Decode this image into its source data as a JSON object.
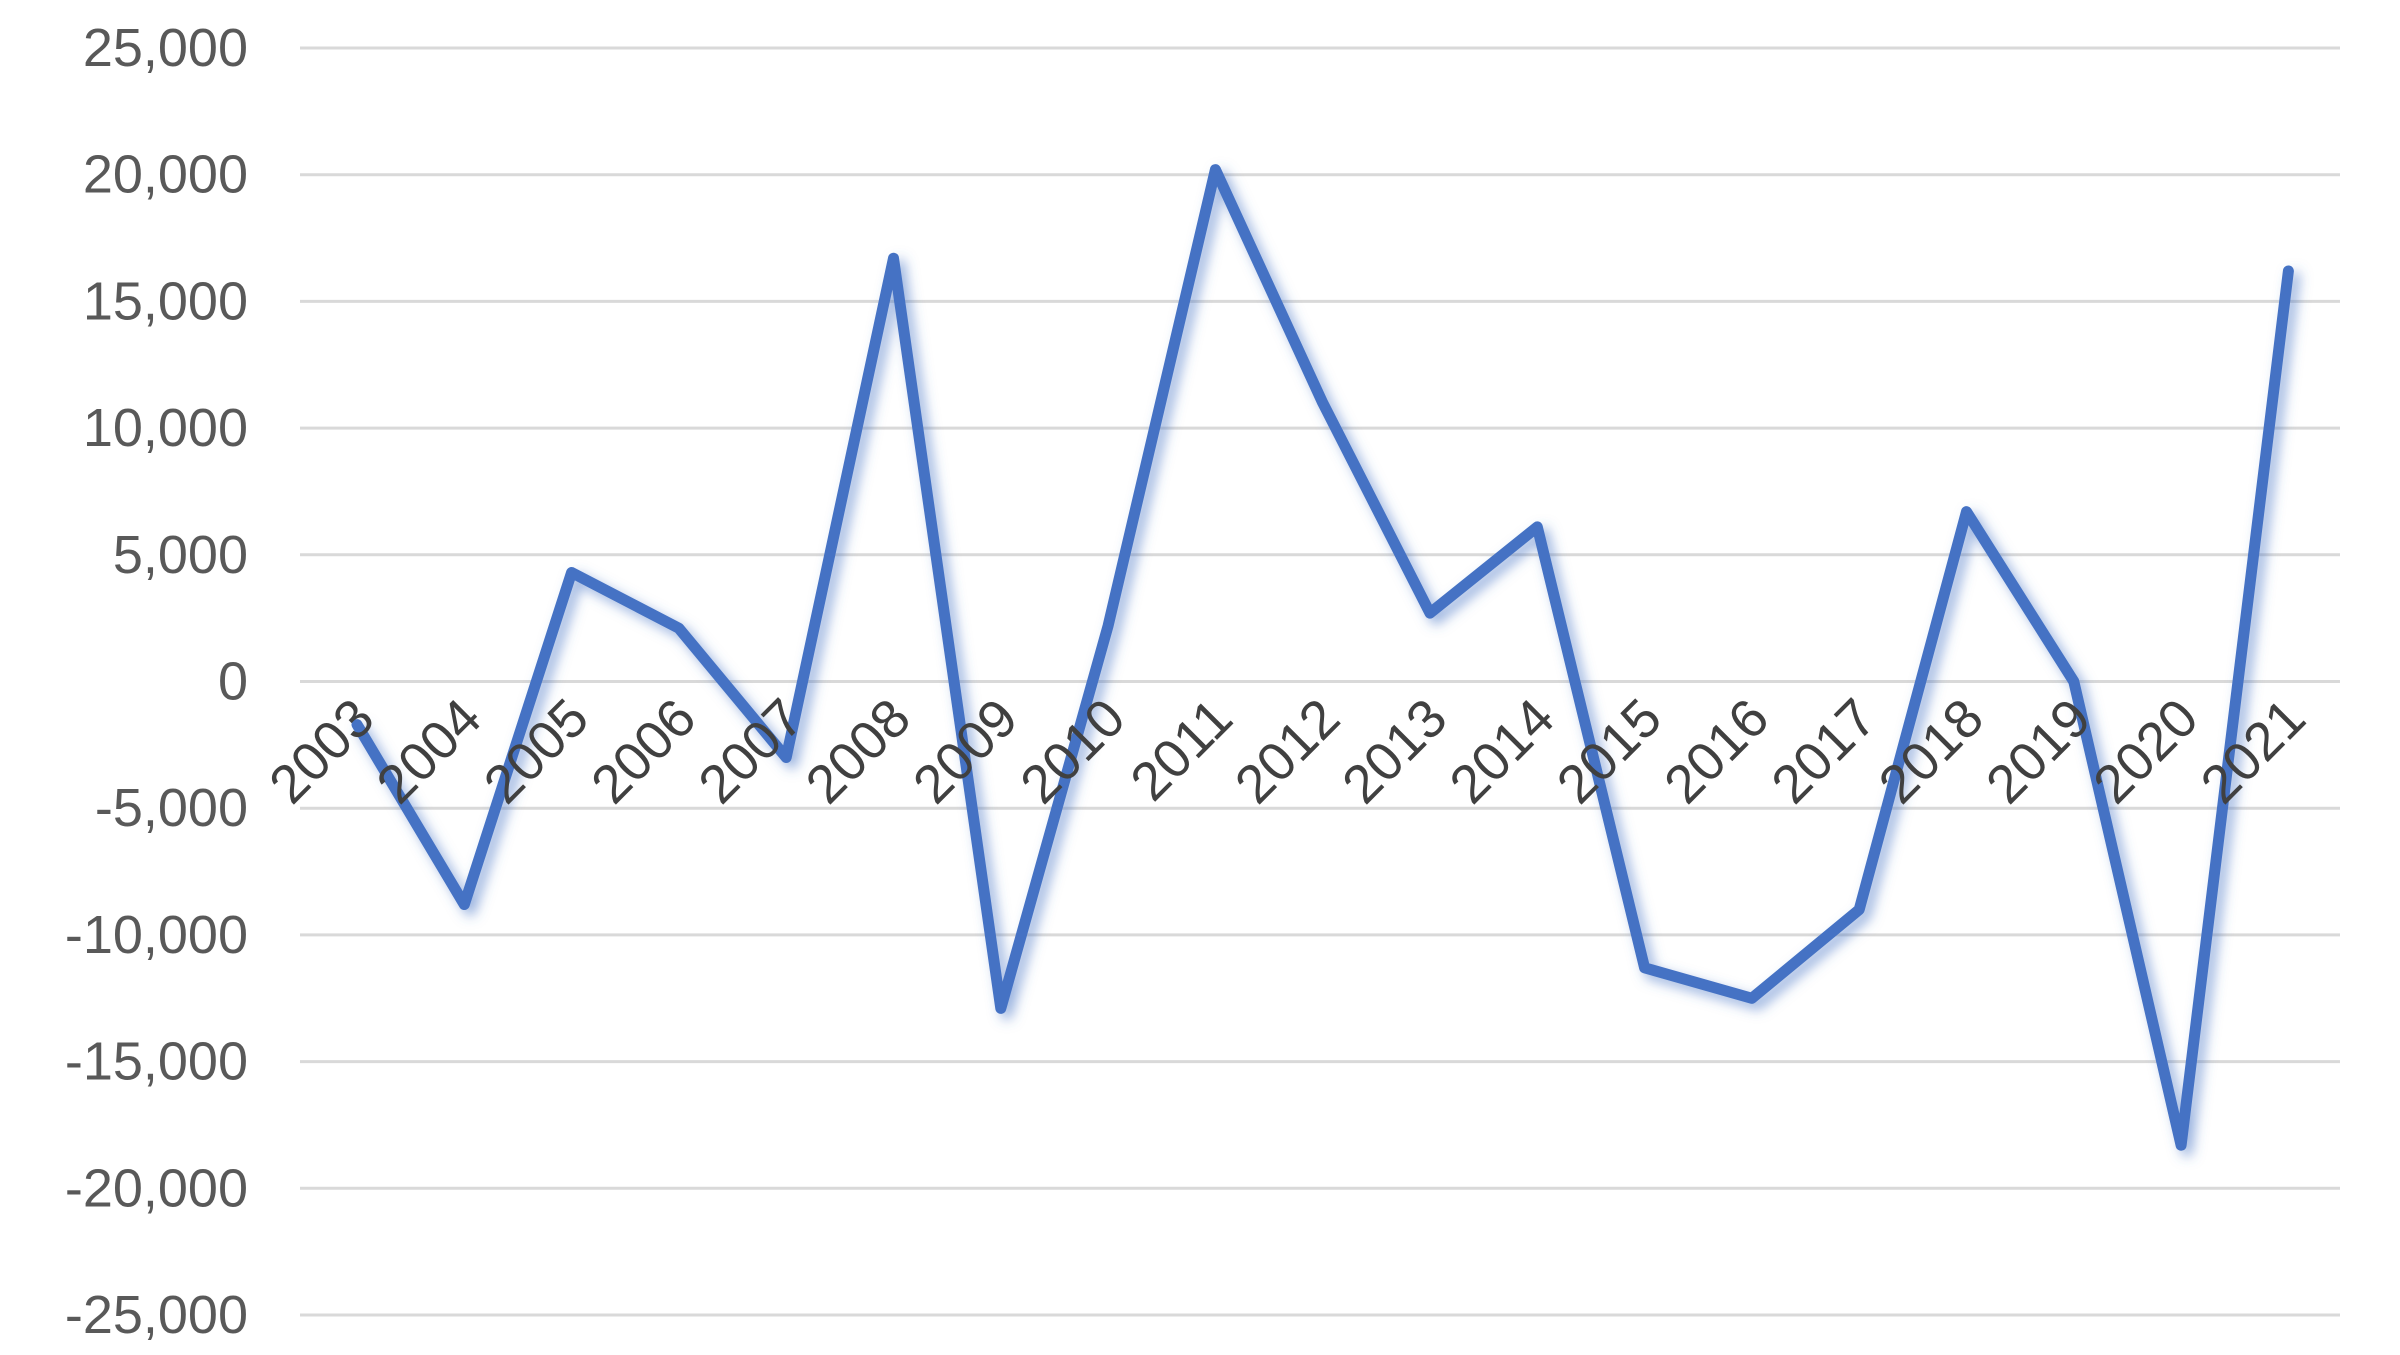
{
  "chart_data": {
    "type": "line",
    "title": "",
    "xlabel": "",
    "ylabel": "",
    "ylim": [
      -25000,
      25000
    ],
    "y_tick_step": 5000,
    "y_tick_labels": [
      "25,000",
      "20,000",
      "15,000",
      "10,000",
      "5,000",
      "0",
      "-5,000",
      "-10,000",
      "-15,000",
      "-20,000",
      "-25,000"
    ],
    "grid": "horizontal",
    "legend": "none",
    "categories": [
      "2003",
      "2004",
      "2005",
      "2006",
      "2007",
      "2008",
      "2009",
      "2010",
      "2011",
      "2012",
      "2013",
      "2014",
      "2015",
      "2016",
      "2017",
      "2018",
      "2019",
      "2020",
      "2021"
    ],
    "series": [
      {
        "values": [
          -1700,
          -8800,
          4300,
          2100,
          -3000,
          16700,
          -12900,
          2200,
          20200,
          11000,
          2700,
          6100,
          -11300,
          -12500,
          -9000,
          6700,
          0,
          -18300,
          16200
        ],
        "color": "#4472c4"
      }
    ],
    "colors": {
      "line": "#4472c4",
      "gridline": "#d9d9d9",
      "tick_label": "#595959"
    }
  }
}
